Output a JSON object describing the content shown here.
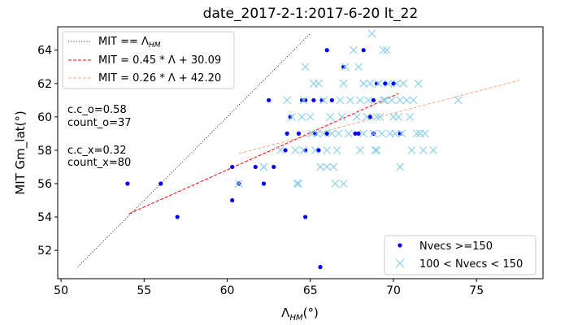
{
  "chart_data": {
    "type": "scatter",
    "title": "date_2017-2-1:2017-6-20  lt_22",
    "xlabel": "Λ_HM(°)",
    "ylabel": "MIT Gm_lat(°)",
    "xlim": [
      49.8,
      79.0
    ],
    "ylim": [
      50.3,
      65.4
    ],
    "xticks": [
      50,
      55,
      60,
      65,
      70,
      75
    ],
    "yticks": [
      52,
      54,
      56,
      58,
      60,
      62,
      64
    ],
    "series": [
      {
        "name": "Nvecs >=150",
        "marker": "dot",
        "color": "#0000ff",
        "points": [
          [
            54.0,
            56.0
          ],
          [
            56.0,
            56.0
          ],
          [
            57.0,
            54.0
          ],
          [
            60.3,
            55.0
          ],
          [
            60.3,
            57.0
          ],
          [
            60.7,
            56.0
          ],
          [
            61.7,
            57.0
          ],
          [
            62.2,
            56.0
          ],
          [
            62.5,
            61.0
          ],
          [
            62.8,
            57.0
          ],
          [
            63.5,
            58.0
          ],
          [
            63.6,
            59.0
          ],
          [
            63.8,
            60.0
          ],
          [
            64.3,
            59.0
          ],
          [
            64.5,
            61.0
          ],
          [
            64.7,
            58.0
          ],
          [
            64.7,
            54.0
          ],
          [
            64.7,
            61.0
          ],
          [
            65.2,
            61.0
          ],
          [
            65.3,
            59.0
          ],
          [
            65.5,
            58.0
          ],
          [
            65.6,
            51.0
          ],
          [
            65.7,
            61.0
          ],
          [
            66.0,
            64.0
          ],
          [
            66.0,
            59.0
          ],
          [
            66.3,
            61.0
          ],
          [
            67.0,
            63.0
          ],
          [
            67.7,
            59.0
          ],
          [
            67.9,
            59.0
          ],
          [
            68.2,
            64.0
          ],
          [
            68.6,
            60.0
          ],
          [
            68.8,
            61.0
          ],
          [
            68.8,
            59.0
          ],
          [
            69.0,
            62.0
          ],
          [
            69.5,
            62.0
          ],
          [
            70.0,
            62.0
          ],
          [
            70.4,
            59.0
          ]
        ]
      },
      {
        "name": "100 < Nvecs < 150",
        "marker": "x",
        "color": "#87ceeb",
        "points": [
          [
            60.7,
            56.0
          ],
          [
            62.2,
            57.0
          ],
          [
            63.2,
            58.0
          ],
          [
            63.9,
            60.0
          ],
          [
            64.1,
            58.0
          ],
          [
            64.2,
            56.0
          ],
          [
            64.3,
            56.0
          ],
          [
            64.6,
            58.0
          ],
          [
            64.6,
            61.0
          ],
          [
            64.7,
            63.0
          ],
          [
            65.0,
            60.0
          ],
          [
            65.1,
            59.0
          ],
          [
            65.3,
            58.0
          ],
          [
            65.4,
            59.0
          ],
          [
            65.5,
            62.0
          ],
          [
            65.6,
            57.0
          ],
          [
            65.8,
            59.0
          ],
          [
            66.0,
            57.0
          ],
          [
            66.0,
            58.0
          ],
          [
            66.2,
            60.0
          ],
          [
            66.3,
            59.0
          ],
          [
            66.4,
            57.0
          ],
          [
            66.5,
            56.0
          ],
          [
            66.7,
            59.0
          ],
          [
            66.9,
            60.0
          ],
          [
            67.0,
            62.0
          ],
          [
            67.0,
            56.0
          ],
          [
            67.1,
            63.0
          ],
          [
            67.3,
            59.0
          ],
          [
            67.6,
            64.0
          ],
          [
            67.8,
            60.0
          ],
          [
            68.0,
            61.0
          ],
          [
            68.2,
            59.0
          ],
          [
            68.4,
            60.0
          ],
          [
            68.5,
            61.0
          ],
          [
            68.6,
            62.0
          ],
          [
            68.7,
            65.0
          ],
          [
            68.8,
            59.0
          ],
          [
            69.0,
            58.0
          ],
          [
            69.0,
            60.0
          ],
          [
            69.1,
            62.0
          ],
          [
            69.2,
            60.0
          ],
          [
            69.3,
            59.0
          ],
          [
            69.4,
            64.0
          ],
          [
            69.5,
            61.0
          ],
          [
            69.6,
            64.0
          ],
          [
            69.7,
            62.0
          ],
          [
            69.8,
            59.0
          ],
          [
            70.0,
            60.0
          ],
          [
            70.1,
            59.0
          ],
          [
            70.2,
            62.0
          ],
          [
            70.4,
            57.0
          ],
          [
            70.4,
            61.0
          ],
          [
            70.5,
            59.0
          ],
          [
            70.6,
            62.0
          ],
          [
            70.8,
            61.0
          ],
          [
            71.0,
            60.0
          ],
          [
            71.1,
            58.0
          ],
          [
            71.2,
            61.0
          ],
          [
            71.4,
            59.0
          ],
          [
            71.6,
            59.0
          ],
          [
            71.8,
            58.0
          ],
          [
            71.9,
            59.0
          ],
          [
            72.4,
            58.0
          ],
          [
            73.9,
            61.0
          ],
          [
            64.5,
            60.0
          ],
          [
            65.8,
            61.0
          ],
          [
            67.4,
            61.0
          ],
          [
            68.2,
            62.0
          ],
          [
            69.9,
            61.0
          ],
          [
            63.6,
            61.0
          ],
          [
            66.8,
            61.0
          ],
          [
            68.0,
            58.0
          ],
          [
            70.3,
            60.0
          ],
          [
            65.2,
            62.0
          ],
          [
            67.9,
            63.0
          ],
          [
            69.4,
            61.0
          ],
          [
            66.6,
            58.0
          ],
          [
            68.9,
            58.0
          ],
          [
            71.5,
            62.0
          ]
        ]
      }
    ],
    "lines": [
      {
        "label": "MIT == Λ_HM",
        "style": "dotted",
        "color": "#000000",
        "from": [
          51.0,
          51.0
        ],
        "to": [
          65.0,
          65.0
        ]
      },
      {
        "label": "MIT = 0.45 * Λ + 30.09",
        "style": "dashed",
        "color": "#ff0000",
        "from": [
          54.1,
          54.2
        ],
        "to": [
          70.3,
          61.4
        ]
      },
      {
        "label": "MIT = 0.26 * Λ + 42.20",
        "style": "dashed-thin",
        "color": "#ffa07a",
        "from": [
          60.7,
          57.8
        ],
        "to": [
          77.6,
          62.2
        ]
      }
    ],
    "legend_lines": [
      {
        "prefix": "MIT == Λ",
        "sub": "HM",
        "suffix": ""
      },
      {
        "prefix": "MIT = 0.45 * Λ + 30.09",
        "sub": "",
        "suffix": ""
      },
      {
        "prefix": "MIT = 0.26 * Λ + 42.20",
        "sub": "",
        "suffix": ""
      }
    ],
    "legend_series": [
      "Nvecs >=150",
      "100 < Nvecs < 150"
    ],
    "annotations": [
      "c.c_o=0.58",
      "count_o=37",
      "c.c_x=0.32",
      "count_x=80"
    ],
    "ylabel_text": "MIT Gm_lat(°)",
    "xlabel_main": "Λ",
    "xlabel_sub": "HM",
    "xlabel_tail": "(°)",
    "grid": false,
    "legend_placement": [
      "top-left",
      "bottom-right"
    ]
  }
}
